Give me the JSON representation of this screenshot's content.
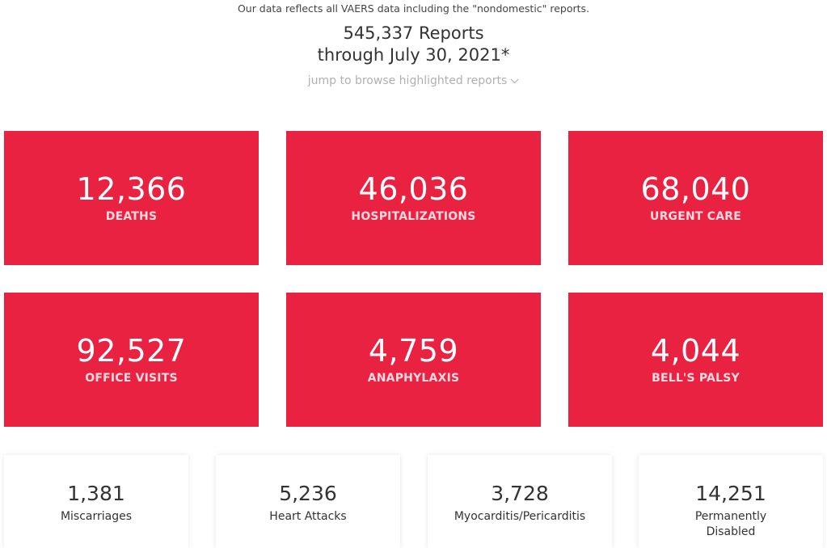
{
  "header": {
    "intro": "Our data reflects all VAERS data including the \"nondomestic\" reports.",
    "reports_line1": "545,337 Reports",
    "reports_line2": "through July 30, 2021*",
    "jump_link": "jump to browse highlighted reports",
    "jump_icon": "chevron-down-icon"
  },
  "stats_primary": [
    {
      "value": "12,366",
      "label": "DEATHS"
    },
    {
      "value": "46,036",
      "label": "HOSPITALIZATIONS"
    },
    {
      "value": "68,040",
      "label": "URGENT CARE"
    },
    {
      "value": "92,527",
      "label": "OFFICE VISITS"
    },
    {
      "value": "4,759",
      "label": "ANAPHYLAXIS"
    },
    {
      "value": "4,044",
      "label": "BELL'S PALSY"
    }
  ],
  "stats_secondary": [
    {
      "value": "1,381",
      "label": "Miscarriages"
    },
    {
      "value": "5,236",
      "label": "Heart Attacks"
    },
    {
      "value": "3,728",
      "label": "Myocarditis/Pericarditis"
    },
    {
      "value": "14,251",
      "label_line1": "Permanently",
      "label_line2": "Disabled"
    }
  ],
  "colors": {
    "card_red": "#ea2242",
    "card_label": "#ffd9df",
    "muted_link": "#b0b0b0"
  }
}
